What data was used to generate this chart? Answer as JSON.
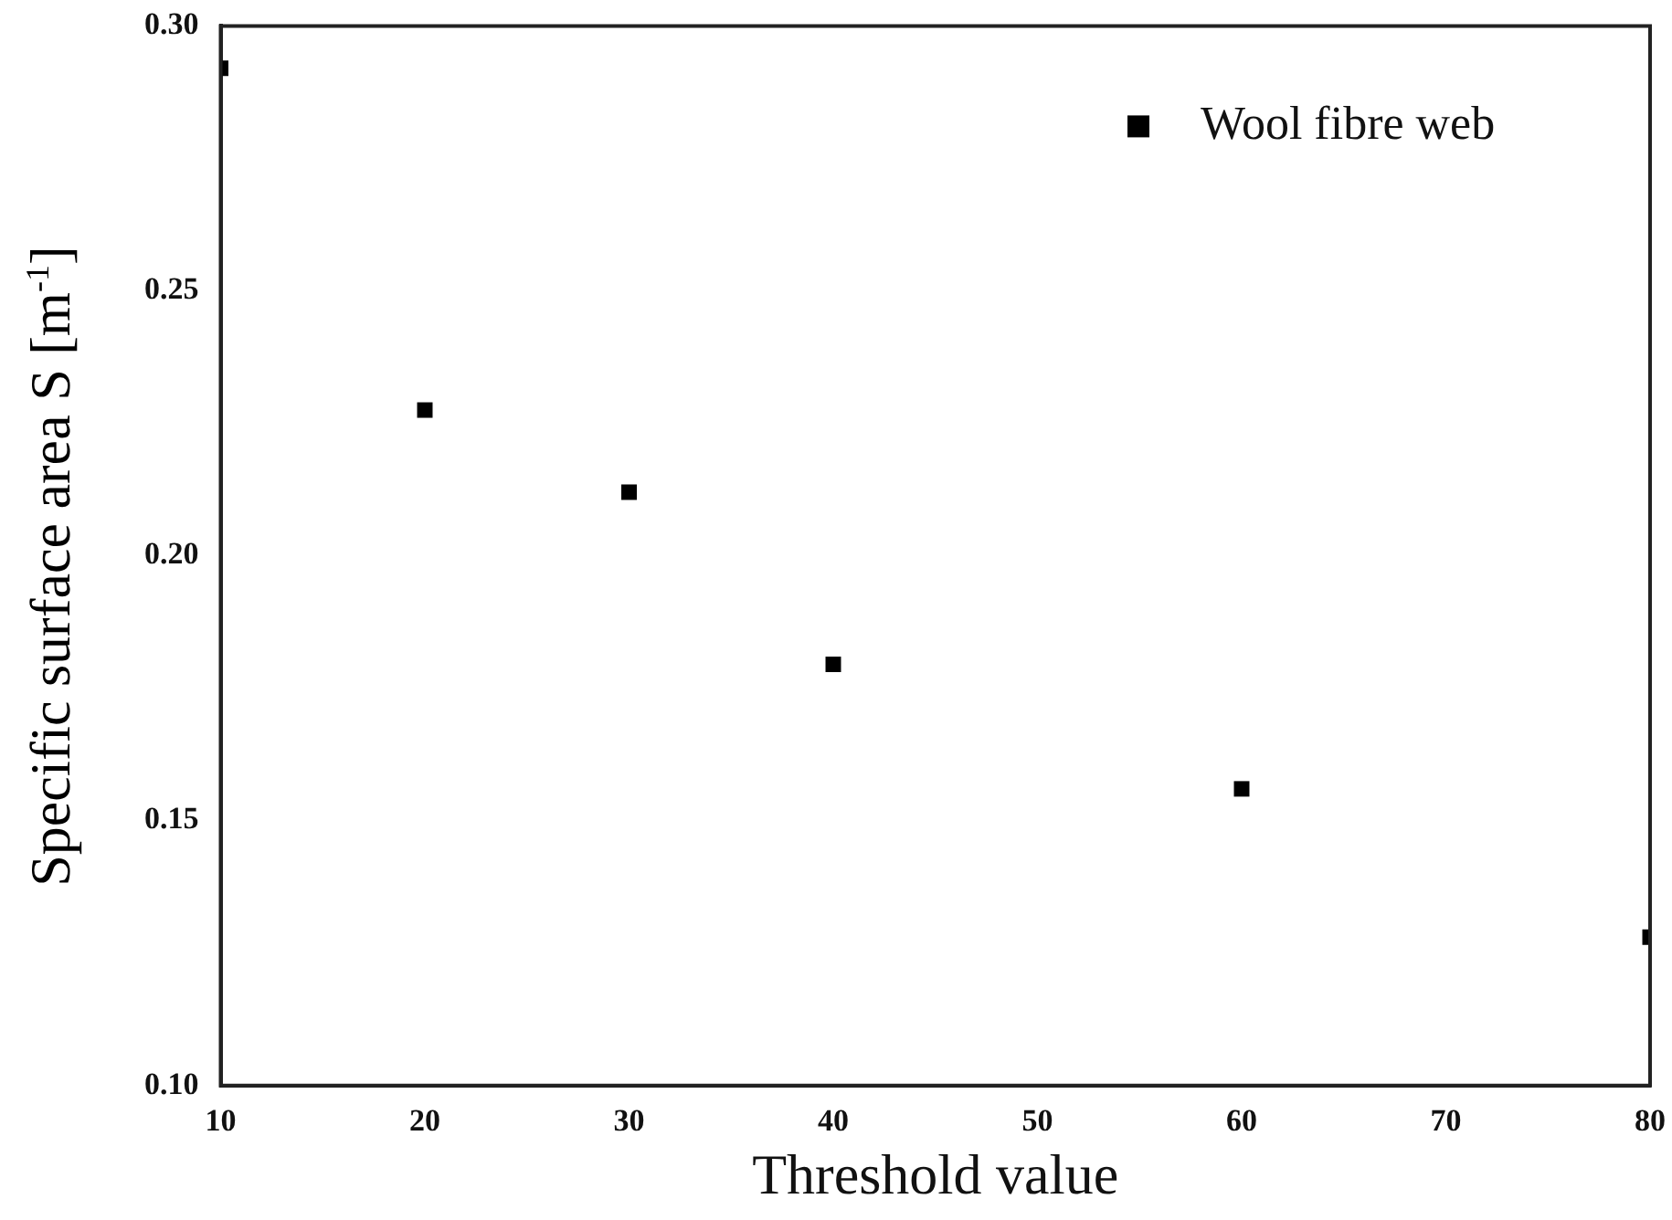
{
  "chart_data": {
    "type": "scatter",
    "xlabel": "Threshold value",
    "ylabel": "Specific surface area S [m$^{-1}$]",
    "x": [
      10,
      20,
      30,
      40,
      60,
      80
    ],
    "series": [
      {
        "name": "Wool fibre web",
        "color": "#000000",
        "values": [
          0.292,
          0.2275,
          0.212,
          0.1795,
          0.156,
          0.128
        ]
      }
    ],
    "xlim": [
      10,
      80
    ],
    "xticks": [
      10,
      20,
      30,
      40,
      50,
      60,
      70,
      80
    ],
    "ylim": [
      0.1,
      0.3
    ],
    "yticks": [
      {
        "value": 0.1,
        "label": "0.10"
      },
      {
        "value": 0.15,
        "label": "0.15"
      },
      {
        "value": 0.2,
        "label": "0.20"
      },
      {
        "value": 0.25,
        "label": "0.25"
      },
      {
        "value": 0.3,
        "label": "0.30"
      }
    ],
    "marker": "square",
    "legend": "top right",
    "grid": false
  }
}
